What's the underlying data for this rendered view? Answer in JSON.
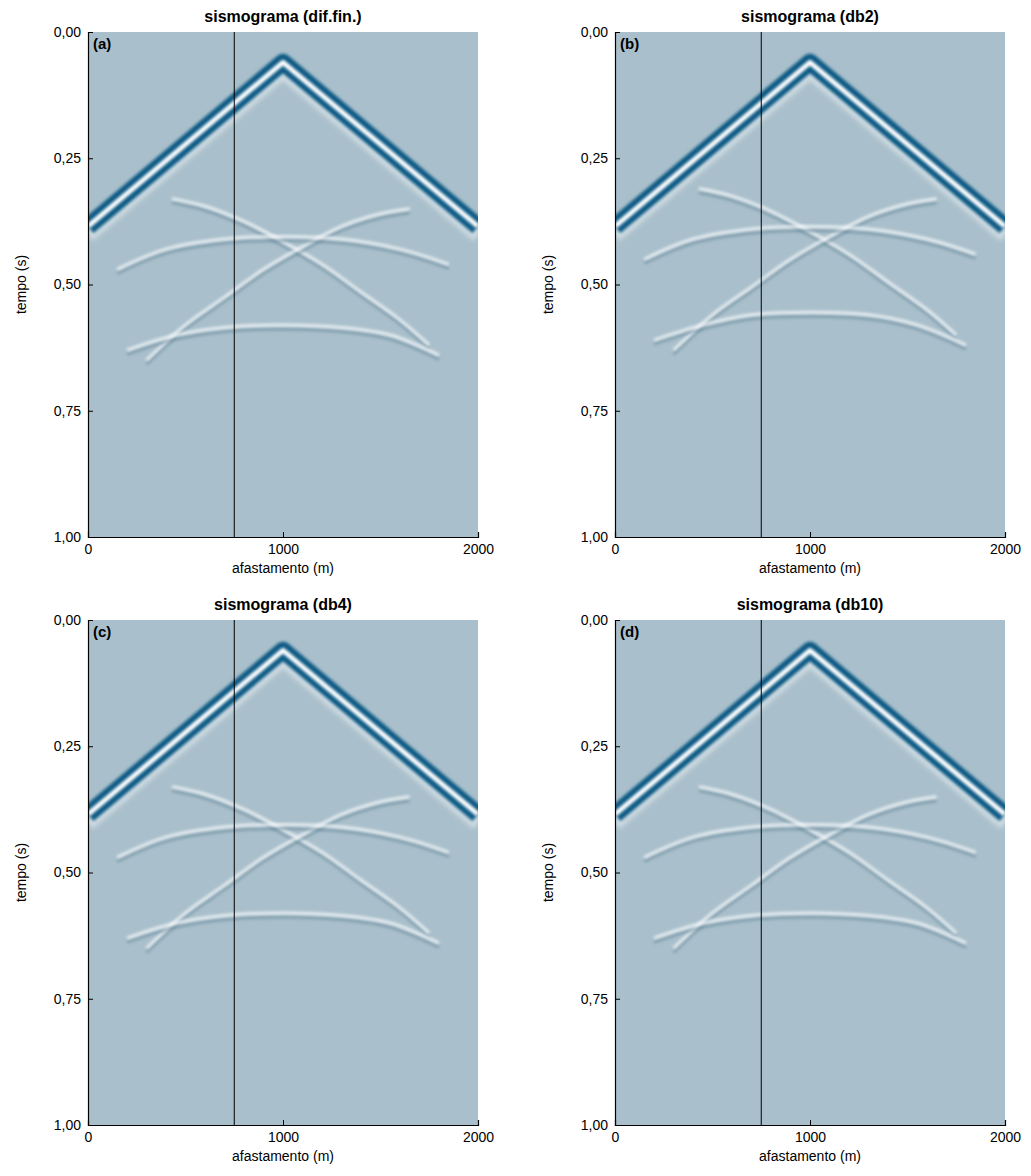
{
  "chart_data": [
    {
      "type": "seismogram",
      "title": "sismograma (dif.fin.)",
      "panel": "(a)",
      "xlabel": "afastamento (m)",
      "ylabel": "tempo (s)",
      "xlim": [
        0,
        2000
      ],
      "xticks": [
        0,
        1000,
        2000
      ],
      "ylim": [
        0,
        1
      ],
      "yticks": [
        {
          "value": 0,
          "label": "0,00"
        },
        {
          "value": 0.25,
          "label": "0,25"
        },
        {
          "value": 0.5,
          "label": "0,50"
        },
        {
          "value": 0.75,
          "label": "0,75"
        },
        {
          "value": 1,
          "label": "1,00"
        }
      ],
      "marked_trace": 750,
      "series": [
        {
          "type": "band",
          "color": "#0e5a85",
          "x": [
            0,
            1000,
            2000
          ],
          "values": [
            0.385,
            0.06,
            0.385
          ]
        },
        {
          "type": "line",
          "color": "#f4f8fa",
          "x": [
            430,
            600,
            800,
            1000,
            1200,
            1400,
            1600,
            1750
          ],
          "values": [
            0.33,
            0.345,
            0.375,
            0.415,
            0.46,
            0.515,
            0.57,
            0.62
          ]
        },
        {
          "type": "line",
          "color": "#f4f8fa",
          "x": [
            1650,
            1500,
            1300,
            1100,
            900,
            700,
            500,
            300
          ],
          "values": [
            0.35,
            0.36,
            0.385,
            0.425,
            0.47,
            0.525,
            0.58,
            0.65
          ]
        },
        {
          "type": "line",
          "color": "#f4f8fa",
          "x": [
            150,
            400,
            700,
            1000,
            1300,
            1600,
            1850
          ],
          "values": [
            0.47,
            0.43,
            0.41,
            0.405,
            0.41,
            0.43,
            0.46
          ]
        },
        {
          "type": "line",
          "color": "#f4f8fa",
          "x": [
            200,
            450,
            700,
            1000,
            1300,
            1550,
            1800
          ],
          "values": [
            0.63,
            0.6,
            0.585,
            0.58,
            0.585,
            0.6,
            0.64
          ]
        }
      ]
    },
    {
      "type": "seismogram",
      "title": "sismograma (db2)",
      "panel": "(b)",
      "xlabel": "afastamento (m)",
      "ylabel": "tempo (s)",
      "xlim": [
        0,
        2000
      ],
      "xticks": [
        0,
        1000,
        2000
      ],
      "ylim": [
        0,
        1
      ],
      "yticks": [
        {
          "value": 0,
          "label": "0,00"
        },
        {
          "value": 0.25,
          "label": "0,25"
        },
        {
          "value": 0.5,
          "label": "0,50"
        },
        {
          "value": 0.75,
          "label": "0,75"
        },
        {
          "value": 1,
          "label": "1,00"
        }
      ],
      "marked_trace": 750,
      "series": [
        {
          "type": "band",
          "color": "#0e5a85",
          "x": [
            0,
            1000,
            2000
          ],
          "values": [
            0.385,
            0.06,
            0.385
          ]
        },
        {
          "type": "line",
          "color": "#f4f8fa",
          "x": [
            430,
            600,
            800,
            1000,
            1200,
            1400,
            1600,
            1750
          ],
          "values": [
            0.31,
            0.325,
            0.355,
            0.395,
            0.44,
            0.495,
            0.55,
            0.6
          ]
        },
        {
          "type": "line",
          "color": "#f4f8fa",
          "x": [
            1650,
            1500,
            1300,
            1100,
            900,
            700,
            500,
            300
          ],
          "values": [
            0.33,
            0.34,
            0.365,
            0.405,
            0.45,
            0.505,
            0.56,
            0.63
          ]
        },
        {
          "type": "line",
          "color": "#f4f8fa",
          "x": [
            150,
            400,
            700,
            1000,
            1300,
            1600,
            1850
          ],
          "values": [
            0.45,
            0.41,
            0.39,
            0.385,
            0.39,
            0.41,
            0.44
          ]
        },
        {
          "type": "line",
          "color": "#f4f8fa",
          "x": [
            200,
            450,
            700,
            1000,
            1300,
            1550,
            1800
          ],
          "values": [
            0.61,
            0.58,
            0.56,
            0.555,
            0.56,
            0.58,
            0.62
          ]
        }
      ]
    },
    {
      "type": "seismogram",
      "title": "sismograma (db4)",
      "panel": "(c)",
      "xlabel": "afastamento (m)",
      "ylabel": "tempo (s)",
      "xlim": [
        0,
        2000
      ],
      "xticks": [
        0,
        1000,
        2000
      ],
      "ylim": [
        0,
        1
      ],
      "yticks": [
        {
          "value": 0,
          "label": "0,00"
        },
        {
          "value": 0.25,
          "label": "0,25"
        },
        {
          "value": 0.5,
          "label": "0,50"
        },
        {
          "value": 0.75,
          "label": "0,75"
        },
        {
          "value": 1,
          "label": "1,00"
        }
      ],
      "marked_trace": 750,
      "series": [
        {
          "type": "band",
          "color": "#0e5a85",
          "x": [
            0,
            1000,
            2000
          ],
          "values": [
            0.385,
            0.06,
            0.385
          ]
        },
        {
          "type": "line",
          "color": "#f4f8fa",
          "x": [
            430,
            600,
            800,
            1000,
            1200,
            1400,
            1600,
            1750
          ],
          "values": [
            0.33,
            0.345,
            0.375,
            0.415,
            0.46,
            0.515,
            0.57,
            0.62
          ]
        },
        {
          "type": "line",
          "color": "#f4f8fa",
          "x": [
            1650,
            1500,
            1300,
            1100,
            900,
            700,
            500,
            300
          ],
          "values": [
            0.35,
            0.36,
            0.385,
            0.425,
            0.47,
            0.525,
            0.58,
            0.65
          ]
        },
        {
          "type": "line",
          "color": "#f4f8fa",
          "x": [
            150,
            400,
            700,
            1000,
            1300,
            1600,
            1850
          ],
          "values": [
            0.47,
            0.43,
            0.41,
            0.405,
            0.41,
            0.43,
            0.46
          ]
        },
        {
          "type": "line",
          "color": "#f4f8fa",
          "x": [
            200,
            450,
            700,
            1000,
            1300,
            1550,
            1800
          ],
          "values": [
            0.63,
            0.6,
            0.585,
            0.58,
            0.585,
            0.6,
            0.64
          ]
        }
      ]
    },
    {
      "type": "seismogram",
      "title": "sismograma (db10)",
      "panel": "(d)",
      "xlabel": "afastamento (m)",
      "ylabel": "tempo (s)",
      "xlim": [
        0,
        2000
      ],
      "xticks": [
        0,
        1000,
        2000
      ],
      "ylim": [
        0,
        1
      ],
      "yticks": [
        {
          "value": 0,
          "label": "0,00"
        },
        {
          "value": 0.25,
          "label": "0,25"
        },
        {
          "value": 0.5,
          "label": "0,50"
        },
        {
          "value": 0.75,
          "label": "0,75"
        },
        {
          "value": 1,
          "label": "1,00"
        }
      ],
      "marked_trace": 750,
      "series": [
        {
          "type": "band",
          "color": "#0e5a85",
          "x": [
            0,
            1000,
            2000
          ],
          "values": [
            0.385,
            0.06,
            0.385
          ]
        },
        {
          "type": "line",
          "color": "#f4f8fa",
          "x": [
            430,
            600,
            800,
            1000,
            1200,
            1400,
            1600,
            1750
          ],
          "values": [
            0.33,
            0.345,
            0.375,
            0.415,
            0.46,
            0.515,
            0.57,
            0.62
          ]
        },
        {
          "type": "line",
          "color": "#f4f8fa",
          "x": [
            1650,
            1500,
            1300,
            1100,
            900,
            700,
            500,
            300
          ],
          "values": [
            0.35,
            0.36,
            0.385,
            0.425,
            0.47,
            0.525,
            0.58,
            0.65
          ]
        },
        {
          "type": "line",
          "color": "#f4f8fa",
          "x": [
            150,
            400,
            700,
            1000,
            1300,
            1600,
            1850
          ],
          "values": [
            0.47,
            0.43,
            0.41,
            0.405,
            0.41,
            0.43,
            0.46
          ]
        },
        {
          "type": "line",
          "color": "#f4f8fa",
          "x": [
            200,
            450,
            700,
            1000,
            1300,
            1550,
            1800
          ],
          "values": [
            0.63,
            0.6,
            0.585,
            0.58,
            0.585,
            0.6,
            0.64
          ]
        }
      ]
    }
  ]
}
